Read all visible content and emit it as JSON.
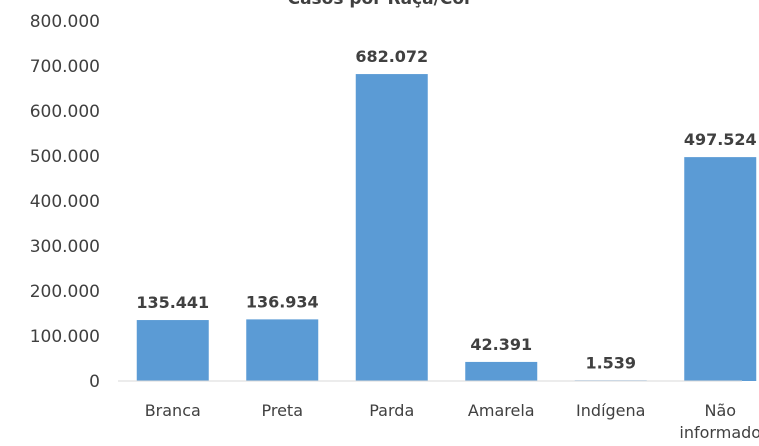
{
  "chart_data": {
    "type": "bar",
    "title": "Casos por Raça/Cor",
    "categories": [
      [
        "Branca"
      ],
      [
        "Preta"
      ],
      [
        "Parda"
      ],
      [
        "Amarela"
      ],
      [
        "Indígena"
      ],
      [
        "Não",
        "informado"
      ]
    ],
    "values": [
      135441,
      136934,
      682072,
      42391,
      1539,
      497524
    ],
    "value_labels": [
      "135.441",
      "136.934",
      "682.072",
      "42.391",
      "1.539",
      "497.524"
    ],
    "y_ticks": [
      0,
      100000,
      200000,
      300000,
      400000,
      500000,
      600000,
      700000,
      800000
    ],
    "y_tick_labels": [
      "0",
      "100.000",
      "200.000",
      "300.000",
      "400.000",
      "500.000",
      "600.000",
      "700.000",
      "800.000"
    ],
    "ylim": [
      0,
      800000
    ],
    "grid": false,
    "bar_color": "#5b9bd5",
    "axis_color": "#d9d9d9"
  }
}
